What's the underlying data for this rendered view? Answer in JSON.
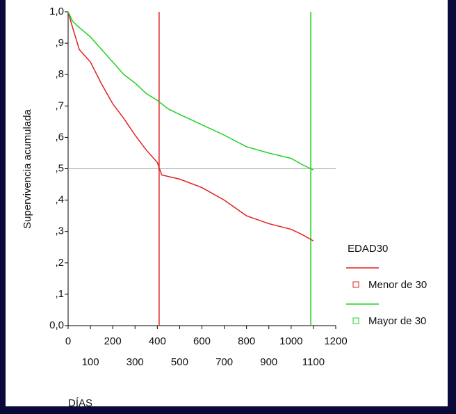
{
  "chart_data": {
    "type": "line",
    "ylabel": "Supervivencia acumulada",
    "xlabel": "DÍAS",
    "legend_title": "EDAD30",
    "legend": "right",
    "xlim": [
      0,
      1200
    ],
    "ylim": [
      0,
      1
    ],
    "xticks": [
      0,
      100,
      200,
      300,
      400,
      500,
      600,
      700,
      800,
      900,
      1000,
      1100,
      1200
    ],
    "yticks": [
      {
        "value": 0,
        "label": "0,0"
      },
      {
        "value": 0.1,
        "label": ",1"
      },
      {
        "value": 0.2,
        "label": ",2"
      },
      {
        "value": 0.3,
        "label": ",3"
      },
      {
        "value": 0.4,
        "label": ",4"
      },
      {
        "value": 0.5,
        "label": ",5"
      },
      {
        "value": 0.6,
        "label": ",6"
      },
      {
        "value": 0.7,
        "label": ",7"
      },
      {
        "value": 0.8,
        "label": ",8"
      },
      {
        "value": 0.9,
        "label": ",9"
      },
      {
        "value": 1,
        "label": "1,0"
      }
    ],
    "hlines": [
      {
        "value": 0.5,
        "color": "#b0b0b0"
      }
    ],
    "vlines": [
      {
        "value": 408,
        "color": "#e02020"
      },
      {
        "value": 1088,
        "color": "#20d020"
      }
    ],
    "series": [
      {
        "name": "Menor de 30",
        "color": "#e02020",
        "x": [
          0,
          20,
          50,
          100,
          150,
          200,
          250,
          300,
          350,
          400,
          420,
          500,
          600,
          700,
          800,
          900,
          1000,
          1050,
          1100
        ],
        "values": [
          1,
          0.95,
          0.88,
          0.84,
          0.77,
          0.707,
          0.66,
          0.607,
          0.56,
          0.52,
          0.48,
          0.467,
          0.44,
          0.4,
          0.35,
          0.325,
          0.307,
          0.29,
          0.27
        ]
      },
      {
        "name": "Mayor de 30",
        "color": "#20d020",
        "x": [
          0,
          20,
          50,
          100,
          150,
          200,
          250,
          300,
          350,
          400,
          450,
          500,
          600,
          700,
          800,
          900,
          1000,
          1050,
          1100
        ],
        "values": [
          1,
          0.97,
          0.95,
          0.92,
          0.88,
          0.84,
          0.8,
          0.773,
          0.74,
          0.718,
          0.69,
          0.673,
          0.64,
          0.607,
          0.57,
          0.55,
          0.533,
          0.513,
          0.496
        ]
      }
    ]
  }
}
